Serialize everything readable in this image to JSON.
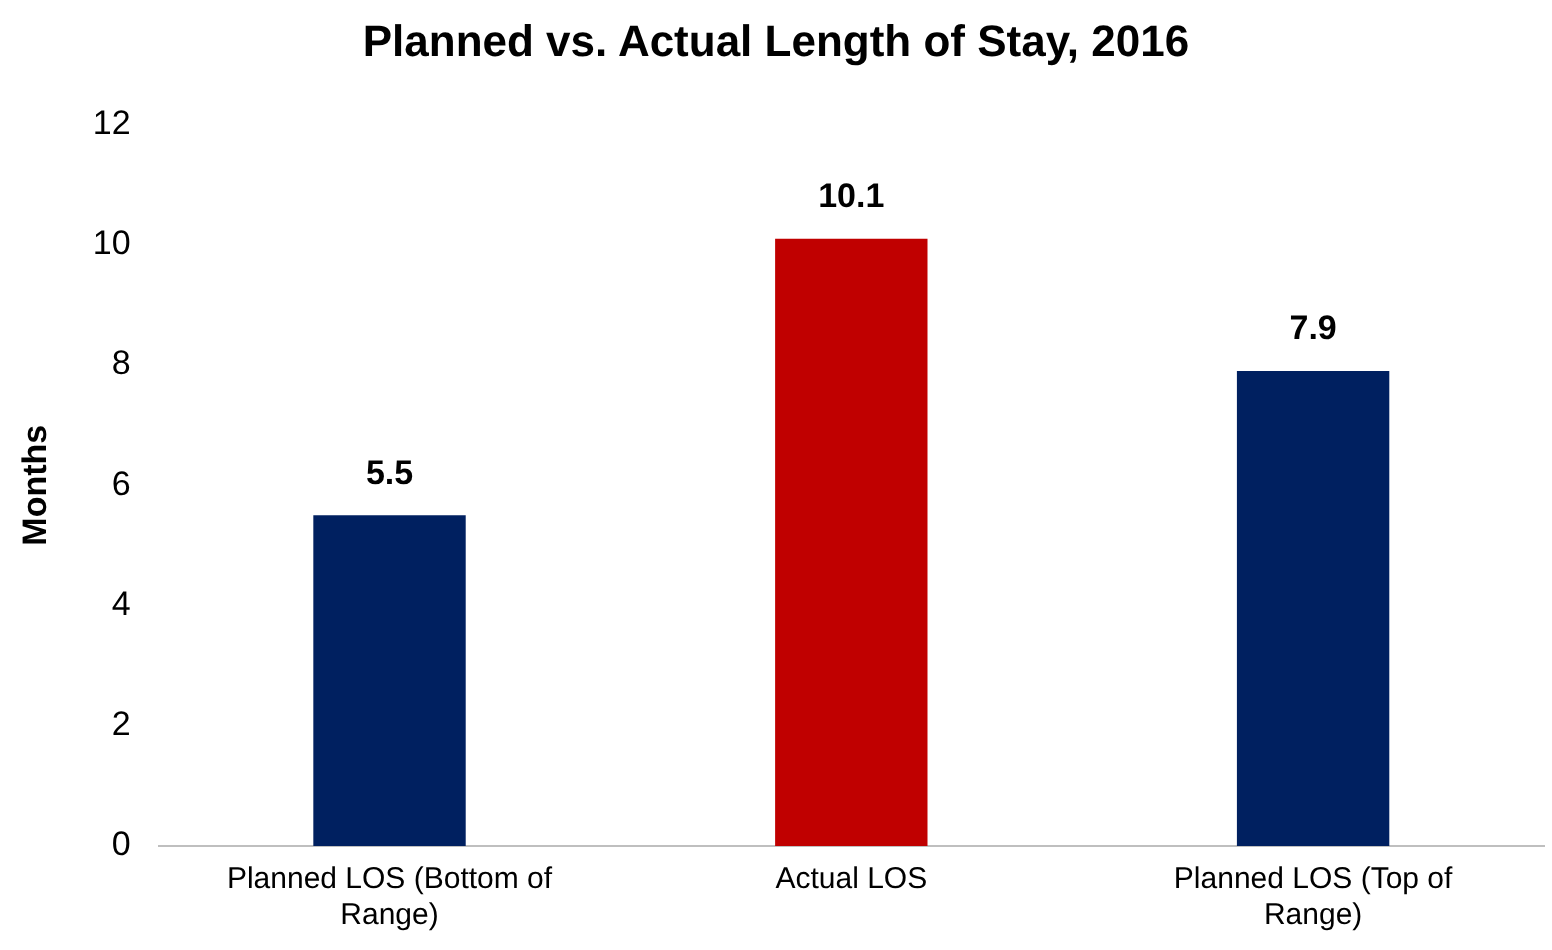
{
  "chart_data": {
    "type": "bar",
    "title": "Planned vs. Actual Length of Stay, 2016",
    "ylabel": "Months",
    "categories": [
      "Planned LOS (Bottom of Range)",
      "Actual LOS",
      "Planned LOS (Top of Range)"
    ],
    "values": [
      5.5,
      10.1,
      7.9
    ],
    "colors": [
      "#002060",
      "#c00000",
      "#002060"
    ],
    "ylim": [
      0,
      12
    ],
    "yticks": [
      0,
      2,
      4,
      6,
      8,
      10,
      12
    ],
    "grid": false,
    "legend": false,
    "data_labels": true
  }
}
